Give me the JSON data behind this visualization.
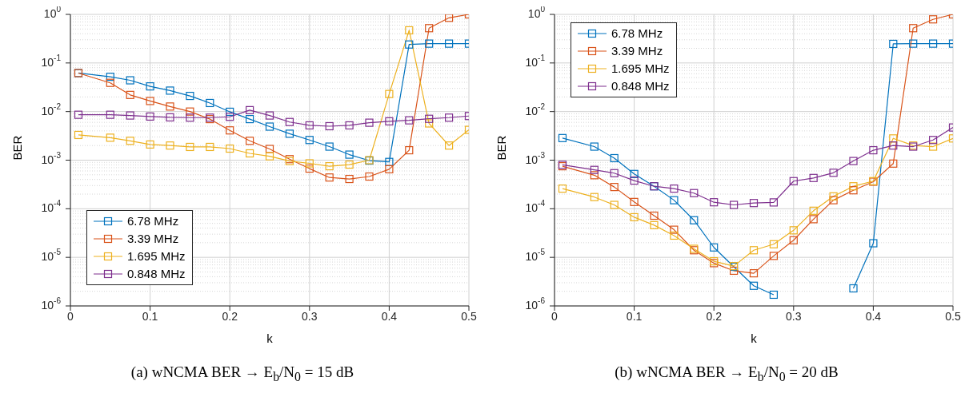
{
  "chart_data": [
    {
      "type": "line",
      "title": "(a) wNCMA BER → E$_{b}$/N$_{0}$ = 15 dB",
      "xlabel": "k",
      "ylabel": "BER",
      "log": "y",
      "grid": true,
      "legend": "bottom left",
      "marker": "square",
      "xlim": [
        0,
        0.5
      ],
      "xticks": [
        0,
        0.1,
        0.2,
        0.3,
        0.4,
        0.5
      ],
      "ylim": [
        1e-06,
        1
      ],
      "yticks": [
        {
          "value": 1e-06,
          "label": "10$^{-6}$"
        },
        {
          "value": 1e-05,
          "label": "10$^{-5}$"
        },
        {
          "value": 0.0001,
          "label": "10$^{-4}$"
        },
        {
          "value": 0.001,
          "label": "10$^{-3}$"
        },
        {
          "value": 0.01,
          "label": "10$^{-2}$"
        },
        {
          "value": 0.1,
          "label": "10$^{-1}$"
        },
        {
          "value": 1,
          "label": "10$^{0}$"
        }
      ],
      "x": [
        0.01,
        0.05,
        0.075,
        0.1,
        0.125,
        0.15,
        0.175,
        0.2,
        0.225,
        0.25,
        0.275,
        0.3,
        0.325,
        0.35,
        0.375,
        0.4,
        0.425,
        0.45,
        0.475,
        0.5
      ],
      "series": [
        {
          "name": "6.78 MHz",
          "color": "#0072bd",
          "values": [
            0.062,
            0.052,
            0.044,
            0.033,
            0.027,
            0.021,
            0.015,
            0.0099,
            0.007,
            0.0049,
            0.0035,
            0.0026,
            0.0019,
            0.0013,
            0.00098,
            0.00092,
            0.24,
            0.25,
            0.25,
            0.25
          ]
        },
        {
          "name": "3.39 MHz",
          "color": "#d95319",
          "values": [
            0.062,
            0.039,
            0.022,
            0.0165,
            0.0127,
            0.01,
            0.007,
            0.0041,
            0.0025,
            0.0017,
            0.00105,
            0.00067,
            0.00044,
            0.00041,
            0.00046,
            0.00065,
            0.0016,
            0.52,
            0.85,
            1.0
          ]
        },
        {
          "name": "1.695 MHz",
          "color": "#edb120",
          "values": [
            0.0033,
            0.0029,
            0.0025,
            0.0021,
            0.002,
            0.00187,
            0.00187,
            0.00173,
            0.00138,
            0.0012,
            0.00096,
            0.00086,
            0.00075,
            0.00081,
            0.001,
            0.023,
            0.47,
            0.0057,
            0.002,
            0.0042
          ]
        },
        {
          "name": "0.848 MHz",
          "color": "#7e2f8e",
          "values": [
            0.0086,
            0.0086,
            0.0083,
            0.0079,
            0.0076,
            0.0075,
            0.0075,
            0.0078,
            0.0107,
            0.0083,
            0.0061,
            0.0052,
            0.005,
            0.0052,
            0.0059,
            0.0063,
            0.0066,
            0.0071,
            0.0075,
            0.0081
          ]
        }
      ]
    },
    {
      "type": "line",
      "title": "(b) wNCMA BER → E$_{b}$/N$_{0}$ = 20 dB",
      "xlabel": "k",
      "ylabel": "BER",
      "log": "y",
      "grid": true,
      "legend": "top left",
      "marker": "square",
      "xlim": [
        0,
        0.5
      ],
      "xticks": [
        0,
        0.1,
        0.2,
        0.3,
        0.4,
        0.5
      ],
      "ylim": [
        1e-06,
        1
      ],
      "yticks": [
        {
          "value": 1e-06,
          "label": "10$^{-6}$"
        },
        {
          "value": 1e-05,
          "label": "10$^{-5}$"
        },
        {
          "value": 0.0001,
          "label": "10$^{-4}$"
        },
        {
          "value": 0.001,
          "label": "10$^{-3}$"
        },
        {
          "value": 0.01,
          "label": "10$^{-2}$"
        },
        {
          "value": 0.1,
          "label": "10$^{-1}$"
        },
        {
          "value": 1,
          "label": "10$^{0}$"
        }
      ],
      "x": [
        0.01,
        0.05,
        0.075,
        0.1,
        0.125,
        0.15,
        0.175,
        0.2,
        0.225,
        0.25,
        0.275,
        0.3,
        0.325,
        0.35,
        0.375,
        0.4,
        0.425,
        0.45,
        0.475,
        0.5
      ],
      "series": [
        {
          "name": "6.78 MHz",
          "color": "#0072bd",
          "values": [
            0.00285,
            0.0019,
            0.0011,
            0.00052,
            0.00029,
            0.00015,
            5.8e-05,
            1.6e-05,
            6.4e-06,
            2.6e-06,
            1.7e-06,
            null,
            null,
            null,
            2.3e-06,
            1.95e-05,
            0.247,
            0.25,
            0.25,
            0.25
          ]
        },
        {
          "name": "3.39 MHz",
          "color": "#d95319",
          "values": [
            0.00075,
            0.00049,
            0.00028,
            0.000138,
            7.2e-05,
            3.7e-05,
            1.4e-05,
            7.6e-06,
            5.3e-06,
            4.7e-06,
            1.07e-05,
            2.25e-05,
            6.1e-05,
            0.00015,
            0.00024,
            0.00036,
            0.00085,
            0.52,
            0.79,
            1.0
          ]
        },
        {
          "name": "1.695 MHz",
          "color": "#edb120",
          "values": [
            0.00026,
            0.000174,
            0.00012,
            6.7e-05,
            4.6e-05,
            2.8e-05,
            1.5e-05,
            8.3e-06,
            6.6e-06,
            1.4e-05,
            1.86e-05,
            3.6e-05,
            9.1e-05,
            0.00018,
            0.00029,
            0.00037,
            0.0028,
            0.002,
            0.0019,
            0.0028
          ]
        },
        {
          "name": "0.848 MHz",
          "color": "#7e2f8e",
          "values": [
            0.0008,
            0.00063,
            0.00054,
            0.00038,
            0.00029,
            0.00026,
            0.00021,
            0.000136,
            0.00012,
            0.000131,
            0.000135,
            0.00037,
            0.00043,
            0.00055,
            0.00096,
            0.0016,
            0.002,
            0.0019,
            0.0026,
            0.0047
          ]
        }
      ]
    }
  ]
}
